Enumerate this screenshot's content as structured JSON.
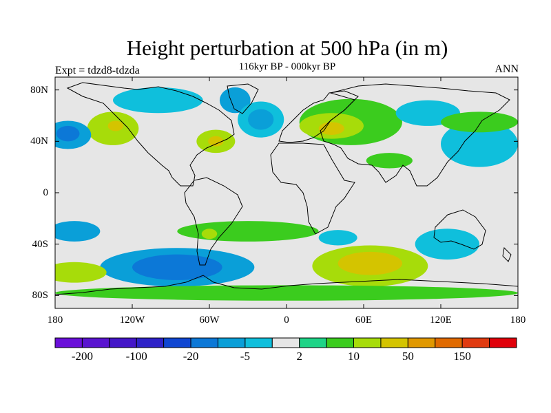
{
  "title": "Height perturbation at 500 hPa (in m)",
  "subtitle": "116kyr BP - 000kyr BP",
  "left_label": "Expt = tdzd8-tdzda",
  "right_label": "ANN",
  "chart_data": {
    "type": "heatmap",
    "map_projection": "cylindrical-equidistant",
    "lon_range": [
      -180,
      180
    ],
    "lat_range": [
      -90,
      90
    ],
    "y_tick_labels": [
      {
        "lat": 80,
        "label": "80N"
      },
      {
        "lat": 40,
        "label": "40N"
      },
      {
        "lat": 0,
        "label": "0"
      },
      {
        "lat": -40,
        "label": "40S"
      },
      {
        "lat": -80,
        "label": "80S"
      }
    ],
    "x_tick_labels": [
      {
        "lon": -180,
        "label": "180"
      },
      {
        "lon": -120,
        "label": "120W"
      },
      {
        "lon": -60,
        "label": "60W"
      },
      {
        "lon": 0,
        "label": "0"
      },
      {
        "lon": 60,
        "label": "60E"
      },
      {
        "lon": 120,
        "label": "120E"
      },
      {
        "lon": 180,
        "label": "180"
      }
    ],
    "colorbar": {
      "levels": [
        -200,
        -150,
        -100,
        -50,
        -20,
        -10,
        -5,
        -2,
        2,
        5,
        10,
        20,
        50,
        100,
        150,
        200
      ],
      "colors": [
        "#6a0fd9",
        "#5a14d0",
        "#4416c8",
        "#2e22c8",
        "#0f46d2",
        "#0c78d7",
        "#0a9fd8",
        "#0fbfdc",
        "#e6e6e6",
        "#1ed487",
        "#3bcc1e",
        "#a7dc0a",
        "#d4c400",
        "#e09800",
        "#e06a00",
        "#e03a10",
        "#e0000a"
      ],
      "labels": [
        {
          "level": -200,
          "text": "-200"
        },
        {
          "level": -100,
          "text": "-100"
        },
        {
          "level": -20,
          "text": "-20"
        },
        {
          "level": -5,
          "text": "-5"
        },
        {
          "level": 2,
          "text": "2"
        },
        {
          "level": 10,
          "text": "10"
        },
        {
          "level": 50,
          "text": "50"
        },
        {
          "level": 150,
          "text": "150"
        }
      ]
    },
    "anomaly_regions": [
      {
        "name": "north-pacific-high",
        "lon": -135,
        "lat": 50,
        "rlon": 20,
        "rlat": 13,
        "value": 10
      },
      {
        "name": "north-pacific-high-core",
        "lon": -133,
        "lat": 52,
        "rlon": 6,
        "rlat": 4,
        "value": 20
      },
      {
        "name": "north-pacific-west-low",
        "lon": -170,
        "lat": 45,
        "rlon": 18,
        "rlat": 11,
        "value": -10
      },
      {
        "name": "north-pacific-west-low-core",
        "lon": -170,
        "lat": 46,
        "rlon": 9,
        "rlat": 6,
        "value": -20
      },
      {
        "name": "canada-low",
        "lon": -100,
        "lat": 72,
        "rlon": 35,
        "rlat": 10,
        "value": -5
      },
      {
        "name": "greenland-low",
        "lon": -40,
        "lat": 72,
        "rlon": 12,
        "rlat": 10,
        "value": -10
      },
      {
        "name": "north-atlantic-low",
        "lon": -20,
        "lat": 57,
        "rlon": 18,
        "rlat": 14,
        "value": -5
      },
      {
        "name": "north-atlantic-low-core",
        "lon": -20,
        "lat": 57,
        "rlon": 10,
        "rlat": 8,
        "value": -10
      },
      {
        "name": "west-atlantic-high",
        "lon": -55,
        "lat": 40,
        "rlon": 15,
        "rlat": 9,
        "value": 10
      },
      {
        "name": "west-atlantic-high-core",
        "lon": -55,
        "lat": 40,
        "rlon": 6,
        "rlat": 4,
        "value": 20
      },
      {
        "name": "eurasia-high",
        "lon": 50,
        "lat": 55,
        "rlon": 40,
        "rlat": 18,
        "value": 5
      },
      {
        "name": "eurasia-high-mid",
        "lon": 35,
        "lat": 52,
        "rlon": 25,
        "rlat": 10,
        "value": 10
      },
      {
        "name": "eurasia-high-core",
        "lon": 35,
        "lat": 50,
        "rlon": 10,
        "rlat": 5,
        "value": 20
      },
      {
        "name": "siberia-low",
        "lon": 110,
        "lat": 62,
        "rlon": 25,
        "rlat": 10,
        "value": -5
      },
      {
        "name": "east-asia-low",
        "lon": 150,
        "lat": 38,
        "rlon": 30,
        "rlat": 18,
        "value": -5
      },
      {
        "name": "north-pacific-east-band",
        "lon": 150,
        "lat": 55,
        "rlon": 30,
        "rlat": 8,
        "value": 5
      },
      {
        "name": "tibet-high",
        "lon": 80,
        "lat": 25,
        "rlon": 18,
        "rlat": 6,
        "value": 5
      },
      {
        "name": "south-atlantic-band",
        "lon": -30,
        "lat": -30,
        "rlon": 55,
        "rlat": 8,
        "value": 5
      },
      {
        "name": "south-america-high",
        "lon": -60,
        "lat": -32,
        "rlon": 6,
        "rlat": 4,
        "value": 10
      },
      {
        "name": "southern-ocean-low",
        "lon": -85,
        "lat": -58,
        "rlon": 60,
        "rlat": 15,
        "value": -10
      },
      {
        "name": "southern-ocean-low-core",
        "lon": -85,
        "lat": -58,
        "rlon": 35,
        "rlat": 10,
        "value": -20
      },
      {
        "name": "south-indian-high",
        "lon": 65,
        "lat": -57,
        "rlon": 45,
        "rlat": 16,
        "value": 10
      },
      {
        "name": "south-indian-high-core",
        "lon": 65,
        "lat": -55,
        "rlon": 25,
        "rlat": 9,
        "value": 20
      },
      {
        "name": "indian-ocean-low",
        "lon": 40,
        "lat": -35,
        "rlon": 15,
        "rlat": 6,
        "value": -5
      },
      {
        "name": "australia-low",
        "lon": 125,
        "lat": -40,
        "rlon": 25,
        "rlat": 12,
        "value": -5
      },
      {
        "name": "south-pacific-low",
        "lon": -165,
        "lat": -30,
        "rlon": 20,
        "rlat": 8,
        "value": -10
      },
      {
        "name": "south-pacific-high",
        "lon": -165,
        "lat": -62,
        "rlon": 25,
        "rlat": 8,
        "value": 10
      },
      {
        "name": "antarctic-band",
        "lon": 0,
        "lat": -78,
        "rlon": 180,
        "rlat": 6,
        "value": 5
      }
    ]
  }
}
